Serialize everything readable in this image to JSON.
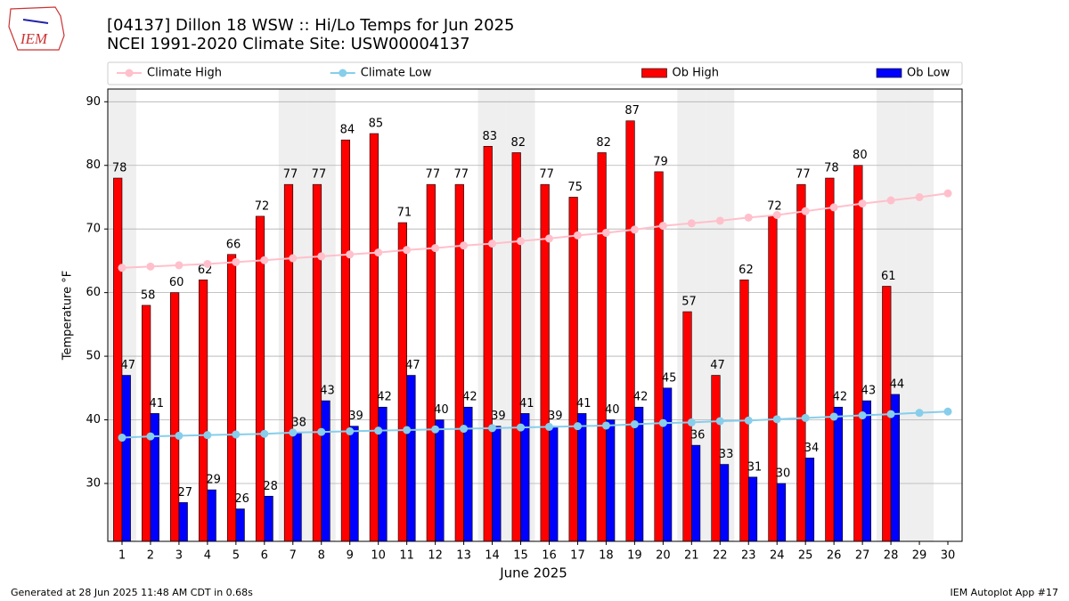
{
  "logo_text": "IEM",
  "footer_left": "Generated at 28 Jun 2025 11:48 AM CDT in 0.68s",
  "footer_right": "IEM Autoplot App #17",
  "chart_data": {
    "type": "bar",
    "title": "[04137] Dillon 18 WSW :: Hi/Lo Temps for Jun 2025",
    "subtitle": "NCEI 1991-2020 Climate Site: USW00004137",
    "x_label": "June 2025",
    "y_label": "Temperature °F",
    "x": [
      1,
      2,
      3,
      4,
      5,
      6,
      7,
      8,
      9,
      10,
      11,
      12,
      13,
      14,
      15,
      16,
      17,
      18,
      19,
      20,
      21,
      22,
      23,
      24,
      25,
      26,
      27,
      28,
      29,
      30
    ],
    "xlim": [
      0.5,
      30.5
    ],
    "xticks": [
      1,
      2,
      3,
      4,
      5,
      6,
      7,
      8,
      9,
      10,
      11,
      12,
      13,
      14,
      15,
      16,
      17,
      18,
      19,
      20,
      21,
      22,
      23,
      24,
      25,
      26,
      27,
      28,
      29,
      30
    ],
    "ylim": [
      20.9,
      92
    ],
    "yticks": [
      30,
      40,
      50,
      60,
      70,
      80,
      90
    ],
    "grid": true,
    "shaded_x": [
      1,
      7,
      8,
      14,
      15,
      21,
      22,
      28,
      29
    ],
    "shade_color": "#efefef",
    "legend": "top",
    "series": [
      {
        "name": "Climate High",
        "type": "line",
        "color": "#ffc0cb",
        "values": [
          63.9,
          64.1,
          64.3,
          64.5,
          64.8,
          65.1,
          65.4,
          65.7,
          66.0,
          66.3,
          66.7,
          67.0,
          67.4,
          67.7,
          68.1,
          68.5,
          69.0,
          69.4,
          69.9,
          70.5,
          70.9,
          71.3,
          71.8,
          72.2,
          72.8,
          73.4,
          74.0,
          74.5,
          75.0,
          75.6
        ]
      },
      {
        "name": "Climate Low",
        "type": "line",
        "color": "#87ceeb",
        "values": [
          37.2,
          37.4,
          37.5,
          37.6,
          37.7,
          37.8,
          38.0,
          38.1,
          38.2,
          38.3,
          38.4,
          38.5,
          38.6,
          38.7,
          38.8,
          38.9,
          39.0,
          39.1,
          39.3,
          39.5,
          39.6,
          39.8,
          39.9,
          40.1,
          40.3,
          40.5,
          40.7,
          40.9,
          41.1,
          41.3
        ]
      },
      {
        "name": "Ob High",
        "type": "bar",
        "color": "#ff0000",
        "offset": -1,
        "values": [
          78,
          58,
          60,
          62,
          66,
          72,
          77,
          77,
          84,
          85,
          71,
          77,
          77,
          83,
          82,
          77,
          75,
          82,
          87,
          79,
          57,
          47,
          62,
          72,
          77,
          78,
          80,
          61,
          null,
          null
        ]
      },
      {
        "name": "Ob Low",
        "type": "bar",
        "color": "#0000ff",
        "offset": 1,
        "values": [
          47,
          41,
          27,
          29,
          26,
          28,
          38,
          43,
          39,
          42,
          47,
          40,
          42,
          39,
          41,
          39,
          41,
          40,
          42,
          45,
          36,
          33,
          31,
          30,
          34,
          42,
          43,
          44,
          null,
          null
        ]
      }
    ]
  }
}
